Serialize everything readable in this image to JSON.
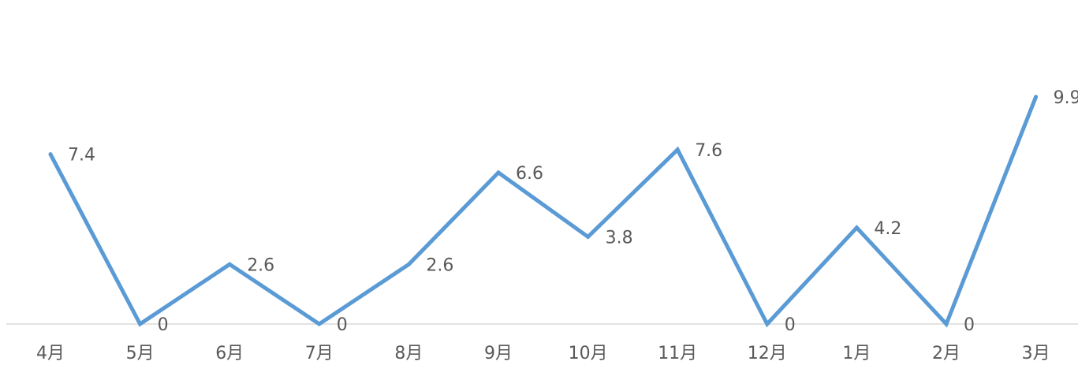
{
  "chart_data": {
    "type": "line",
    "categories": [
      "4月",
      "5月",
      "6月",
      "7月",
      "8月",
      "9月",
      "10月",
      "11月",
      "12月",
      "1月",
      "2月",
      "3月"
    ],
    "series": [
      {
        "values": [
          7.4,
          0,
          2.6,
          0,
          2.6,
          6.6,
          3.8,
          7.6,
          0,
          4.2,
          0,
          9.9
        ],
        "color": "#5B9BD5"
      }
    ],
    "data_labels": [
      "7.4",
      "0",
      "2.6",
      "0",
      "2.6",
      "6.6",
      "3.8",
      "7.6",
      "0",
      "4.2",
      "0",
      "9.9"
    ],
    "title": "",
    "xlabel": "",
    "ylabel": "",
    "ylim": [
      0,
      10
    ],
    "grid": false,
    "legend": "none",
    "axis_color": "#D9D9D9"
  }
}
